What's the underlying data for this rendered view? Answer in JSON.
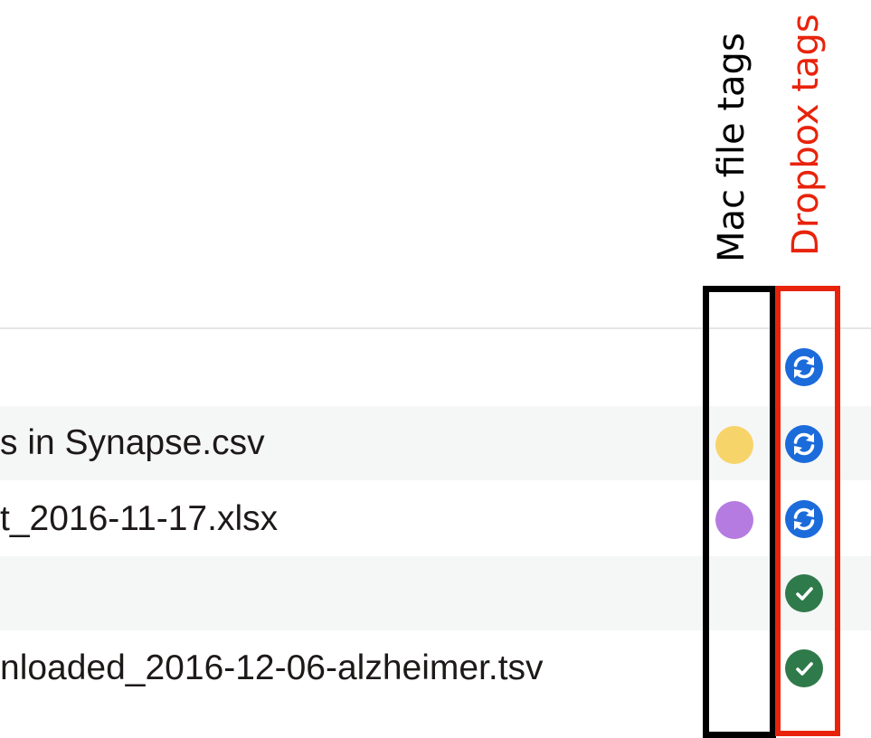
{
  "annotations": {
    "mac_label": "Mac file tags",
    "mac_color": "#000000",
    "dropbox_label": "Dropbox tags",
    "dropbox_color": "#e8230c"
  },
  "rows": [
    {
      "name": "",
      "mac_tag": null,
      "dropbox_status": "syncing"
    },
    {
      "name": "s in Synapse.csv",
      "mac_tag": "#f7d46a",
      "dropbox_status": "syncing"
    },
    {
      "name": "t_2016-11-17.xlsx",
      "mac_tag": "#b57be0",
      "dropbox_status": "syncing"
    },
    {
      "name": "",
      "mac_tag": null,
      "dropbox_status": "synced"
    },
    {
      "name": "nloaded_2016-12-06-alzheimer.tsv",
      "mac_tag": null,
      "dropbox_status": "synced"
    }
  ],
  "status_colors": {
    "syncing": "#1b6bdb",
    "synced": "#2f7a4a"
  }
}
